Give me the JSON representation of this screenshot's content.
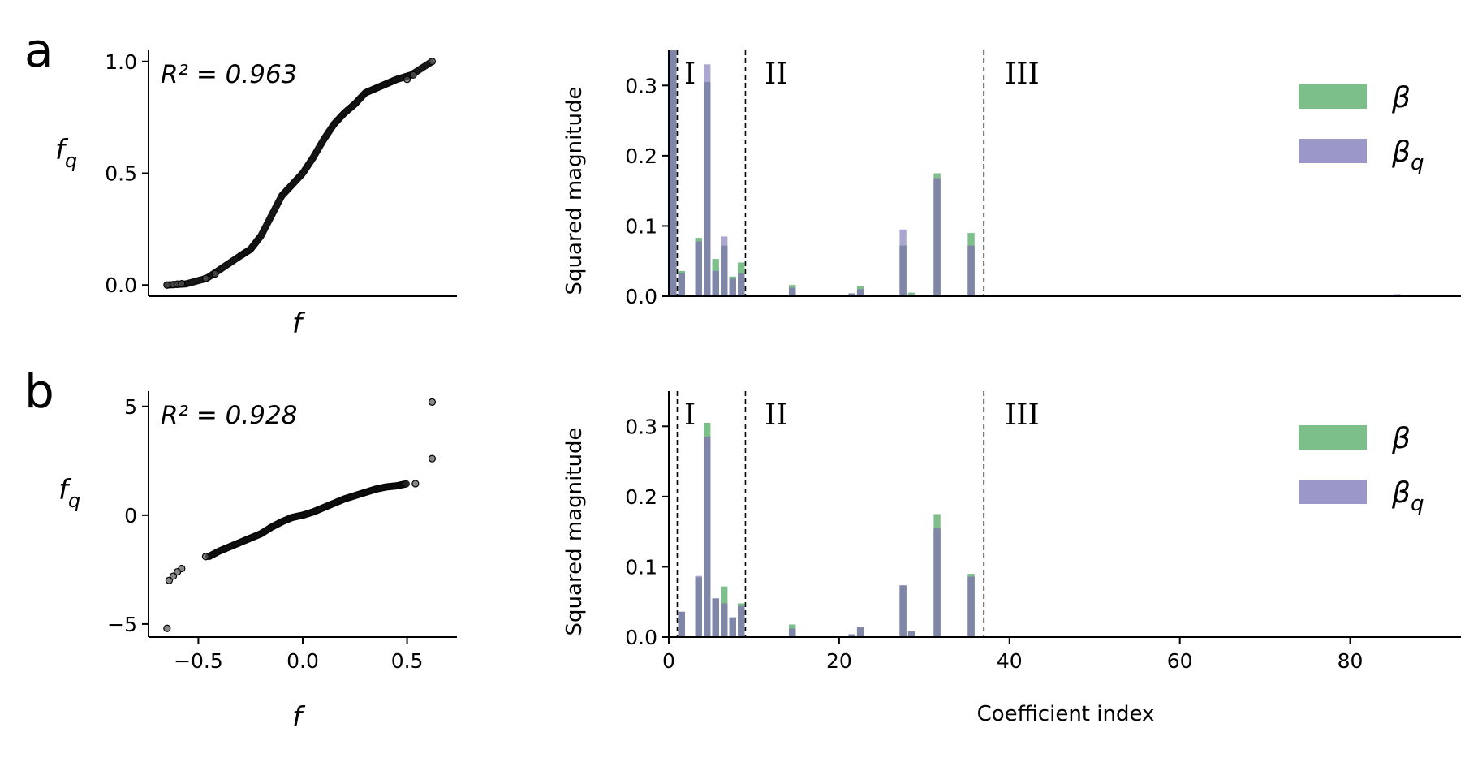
{
  "colors": {
    "beta": "#7dbf8a",
    "beta_q": "#9b97c8",
    "overlap": "#7f86a8",
    "dot": "#222222"
  },
  "regions": {
    "I": "I",
    "II": "II",
    "III": "III",
    "boundaries": [
      1,
      9,
      37
    ]
  },
  "chart_data": [
    {
      "type": "scatter",
      "id": "scatter-a",
      "panel": "a",
      "r2_label": "R² = 0.963",
      "xlabel": "f",
      "ylabel": "f_q",
      "xlim": [
        -0.7,
        0.7
      ],
      "ylim": [
        -0.05,
        1.05
      ],
      "xticks": [],
      "yticks": [
        0.0,
        0.5,
        1.0
      ],
      "ytick_labels": [
        "0.0",
        "0.5",
        "1.0"
      ],
      "curve": [
        [
          -0.65,
          0.0
        ],
        [
          -0.56,
          0.005
        ],
        [
          -0.46,
          0.03
        ],
        [
          -0.38,
          0.08
        ],
        [
          -0.3,
          0.13
        ],
        [
          -0.25,
          0.16
        ],
        [
          -0.2,
          0.22
        ],
        [
          -0.15,
          0.31
        ],
        [
          -0.1,
          0.4
        ],
        [
          -0.05,
          0.45
        ],
        [
          0.0,
          0.5
        ],
        [
          0.05,
          0.57
        ],
        [
          0.1,
          0.65
        ],
        [
          0.15,
          0.72
        ],
        [
          0.2,
          0.77
        ],
        [
          0.25,
          0.81
        ],
        [
          0.3,
          0.86
        ],
        [
          0.35,
          0.88
        ],
        [
          0.4,
          0.9
        ],
        [
          0.45,
          0.92
        ],
        [
          0.52,
          0.94
        ],
        [
          0.62,
          1.0
        ]
      ],
      "points": [
        [
          -0.65,
          0.0
        ],
        [
          -0.62,
          0.002
        ],
        [
          -0.6,
          0.004
        ],
        [
          -0.58,
          0.006
        ],
        [
          -0.465,
          0.03
        ],
        [
          -0.42,
          0.05
        ],
        [
          0.5,
          0.92
        ],
        [
          0.53,
          0.94
        ],
        [
          0.62,
          1.0
        ]
      ]
    },
    {
      "type": "scatter",
      "id": "scatter-b",
      "panel": "b",
      "r2_label": "R² = 0.928",
      "xlabel": "f",
      "ylabel": "f_q",
      "xlim": [
        -0.7,
        0.7
      ],
      "ylim": [
        -5.6,
        5.7
      ],
      "xticks": [
        -0.5,
        0.0,
        0.5
      ],
      "xtick_labels": [
        "−0.5",
        "0.0",
        "0.5"
      ],
      "yticks": [
        -5,
        0,
        5
      ],
      "ytick_labels": [
        "−5",
        "0",
        "5"
      ],
      "curve": [
        [
          -0.45,
          -1.9
        ],
        [
          -0.4,
          -1.65
        ],
        [
          -0.35,
          -1.45
        ],
        [
          -0.3,
          -1.25
        ],
        [
          -0.25,
          -1.05
        ],
        [
          -0.2,
          -0.85
        ],
        [
          -0.15,
          -0.55
        ],
        [
          -0.1,
          -0.3
        ],
        [
          -0.05,
          -0.1
        ],
        [
          0.0,
          0.0
        ],
        [
          0.05,
          0.15
        ],
        [
          0.1,
          0.35
        ],
        [
          0.15,
          0.55
        ],
        [
          0.2,
          0.75
        ],
        [
          0.25,
          0.9
        ],
        [
          0.3,
          1.05
        ],
        [
          0.35,
          1.2
        ],
        [
          0.4,
          1.3
        ],
        [
          0.45,
          1.35
        ],
        [
          0.5,
          1.45
        ]
      ],
      "points": [
        [
          -0.65,
          -5.2
        ],
        [
          -0.64,
          -3.0
        ],
        [
          -0.62,
          -2.8
        ],
        [
          -0.6,
          -2.6
        ],
        [
          -0.58,
          -2.45
        ],
        [
          -0.465,
          -1.9
        ],
        [
          0.54,
          1.45
        ],
        [
          0.62,
          2.6
        ],
        [
          0.62,
          5.2
        ]
      ]
    },
    {
      "type": "bar",
      "id": "bars-a",
      "panel": "a",
      "ylabel": "Squared magnitude",
      "xlabel": "",
      "xlim": [
        0,
        93
      ],
      "ylim": [
        0,
        0.35
      ],
      "yticks": [
        0.0,
        0.1,
        0.2,
        0.3
      ],
      "ytick_labels": [
        "0.0",
        "0.1",
        "0.2",
        "0.3"
      ],
      "xticks": [],
      "legend": [
        "β",
        "β_q"
      ],
      "legend_position": "upper-right",
      "indices": [
        0,
        1,
        3,
        4,
        5,
        6,
        7,
        8,
        14,
        21,
        22,
        27,
        28,
        31,
        35,
        85
      ],
      "beta": [
        0.35,
        0.036,
        0.083,
        0.305,
        0.053,
        0.072,
        0.028,
        0.048,
        0.016,
        0.004,
        0.014,
        0.072,
        0.005,
        0.175,
        0.09,
        0.0
      ],
      "beta_q": [
        0.35,
        0.033,
        0.078,
        0.33,
        0.036,
        0.085,
        0.025,
        0.033,
        0.012,
        0.004,
        0.01,
        0.095,
        0.002,
        0.168,
        0.072,
        0.003
      ]
    },
    {
      "type": "bar",
      "id": "bars-b",
      "panel": "b",
      "ylabel": "Squared magnitude",
      "xlabel": "Coefficient index",
      "xlim": [
        0,
        93
      ],
      "ylim": [
        0,
        0.35
      ],
      "yticks": [
        0.0,
        0.1,
        0.2,
        0.3
      ],
      "ytick_labels": [
        "0.0",
        "0.1",
        "0.2",
        "0.3"
      ],
      "xticks": [
        0,
        20,
        40,
        60,
        80
      ],
      "xtick_labels": [
        "0",
        "20",
        "40",
        "60",
        "80"
      ],
      "legend": [
        "β",
        "β_q"
      ],
      "legend_position": "upper-right",
      "indices": [
        1,
        3,
        4,
        5,
        6,
        7,
        8,
        14,
        21,
        22,
        27,
        28,
        31,
        35
      ],
      "beta": [
        0.036,
        0.085,
        0.305,
        0.055,
        0.072,
        0.028,
        0.048,
        0.018,
        0.004,
        0.014,
        0.073,
        0.008,
        0.175,
        0.09
      ],
      "beta_q": [
        0.036,
        0.087,
        0.285,
        0.055,
        0.048,
        0.028,
        0.044,
        0.012,
        0.004,
        0.014,
        0.074,
        0.008,
        0.155,
        0.086
      ]
    }
  ]
}
